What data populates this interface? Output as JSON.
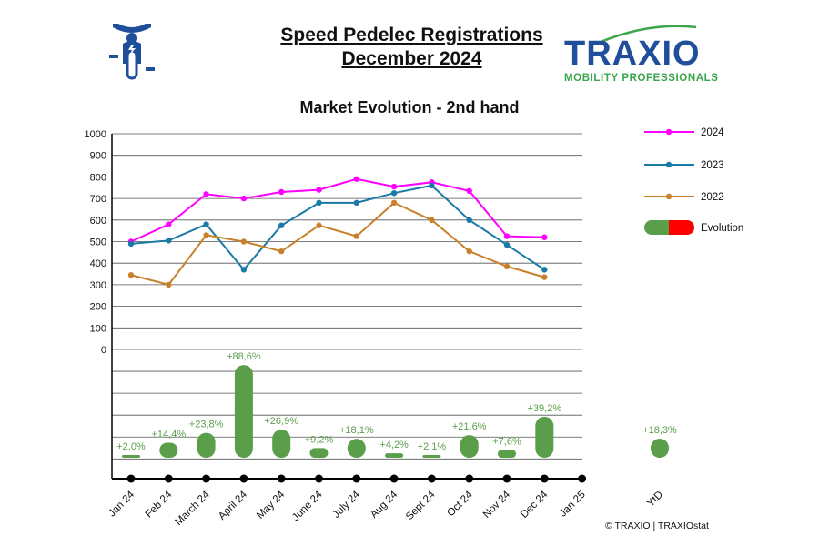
{
  "header": {
    "title_line1": "Speed Pedelec Registrations",
    "title_line2": "December 2024",
    "subtitle": "Market Evolution - 2nd hand"
  },
  "brand": {
    "name": "TRAXIO",
    "tagline": "MOBILITY PROFESSIONALS",
    "primary_color": "#1f4e9a",
    "accent_color": "#3aa54a",
    "icon": "speed-pedelec-rider-icon"
  },
  "footer": {
    "copyright": "© TRAXIO | TRAXIOstat"
  },
  "chart_data": {
    "type": "line",
    "title": "Market Evolution - 2nd hand",
    "categories": [
      "Jan 24",
      "Feb 24",
      "March 24",
      "April 24",
      "May 24",
      "June 24",
      "July 24",
      "Aug 24",
      "Sept 24",
      "Oct 24",
      "Nov 24",
      "Dec 24",
      "Jan 25"
    ],
    "ylim": [
      0,
      1000
    ],
    "yticks": [
      0,
      100,
      200,
      300,
      400,
      500,
      600,
      700,
      800,
      900,
      1000
    ],
    "grid": true,
    "legend_position": "right",
    "series": [
      {
        "name": "2024",
        "color": "#ff00ff",
        "values": [
          500,
          580,
          720,
          700,
          730,
          740,
          790,
          755,
          775,
          735,
          525,
          520,
          null
        ]
      },
      {
        "name": "2023",
        "color": "#1a7aa6",
        "values": [
          490,
          505,
          580,
          370,
          575,
          680,
          680,
          725,
          760,
          600,
          485,
          370,
          null
        ]
      },
      {
        "name": "2022",
        "color": "#c8802a",
        "values": [
          345,
          300,
          530,
          500,
          455,
          575,
          525,
          680,
          600,
          455,
          385,
          335,
          null
        ]
      }
    ],
    "evolution": {
      "name": "Evolution",
      "positive_color": "#5a9e4a",
      "negative_color": "#ff0000",
      "values": [
        2.0,
        14.4,
        23.8,
        88.6,
        26.9,
        9.2,
        18.1,
        4.2,
        2.1,
        21.6,
        7.6,
        39.2
      ],
      "labels": [
        "+2,0%",
        "+14,4%",
        "+23,8%",
        "+88,6%",
        "+26,9%",
        "+9,2%",
        "+18,1%",
        "+4,2%",
        "+2,1%",
        "+21,6%",
        "+7,6%",
        "+39,2%"
      ],
      "ytd_label": "YtD",
      "ytd_value": 18.3,
      "ytd_text": "+18,3%"
    }
  }
}
